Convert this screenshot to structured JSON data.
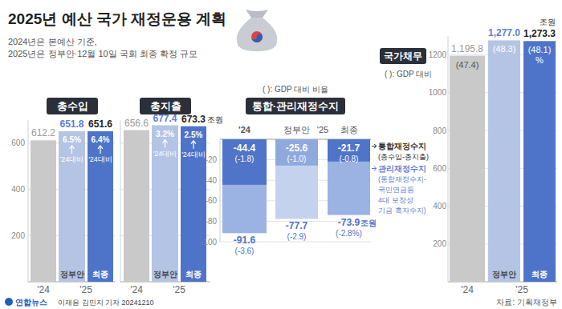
{
  "header": {
    "title": "2025년 예산 국가 재정운용 계획",
    "subtitle": [
      "2024년은 본예산 기준,",
      "2025년은 정부안·12월 10일 국회 최종 확정 규모"
    ]
  },
  "chart_data": [
    {
      "type": "bar",
      "title": "총수입",
      "categories": [
        "'24",
        "정부안",
        "최종"
      ],
      "year_label": "'25",
      "values": [
        612.2,
        651.8,
        651.6
      ],
      "colors": [
        "#c9c9c9",
        "#b4c4e4",
        "#4e74c9"
      ],
      "change": {
        "labels": [
          null,
          "6.5%",
          "6.4%"
        ],
        "base_label": "'24대비"
      },
      "ylim": [
        0,
        700
      ],
      "yticks": [
        200,
        400,
        600
      ],
      "grid": true,
      "data_labels": true
    },
    {
      "type": "bar",
      "title": "총지출",
      "categories": [
        "'24",
        "정부안",
        "최종"
      ],
      "year_label": "'25",
      "values": [
        656.6,
        677.4,
        673.3
      ],
      "colors": [
        "#c9c9c9",
        "#b4c4e4",
        "#4e74c9"
      ],
      "change": {
        "labels": [
          null,
          "3.2%",
          "2.5%"
        ],
        "base_label": "'24대비"
      },
      "unit": "조원",
      "ylim": [
        0,
        700
      ],
      "yticks": [
        200,
        400,
        600
      ],
      "grid": true,
      "data_labels": true,
      "tick_labels": false
    },
    {
      "type": "bar",
      "title": "통합·관리재정수지",
      "note": "( ): GDP 대비 비율",
      "categories": [
        "'24",
        "정부안",
        "최종"
      ],
      "year_label": "'25",
      "series": [
        {
          "name": "통합재정수지",
          "description": [
            "(총수입-총지출)"
          ],
          "values": [
            -44.4,
            -25.6,
            -21.7
          ],
          "colors": [
            "#4f74c8",
            "#8fa9dd",
            "#4f74c8"
          ],
          "gdp_ratio_labels": [
            "(-1.8)",
            "(-1.0)",
            "(-0.8)"
          ]
        },
        {
          "name": "관리재정수지",
          "description": [
            "(통합재정수지-",
            "국민연금등",
            "4대 보장성",
            "기금 흑자수지)"
          ],
          "values": [
            -91.6,
            -77.7,
            -73.9
          ],
          "colors": [
            "#9bb3e3",
            "#c5d2ee",
            "#9bb3e3"
          ],
          "gdp_ratio_labels": [
            "(-3.6)",
            "(-2.9)",
            "(-2.8%)"
          ]
        }
      ],
      "unit": "조원",
      "ylim": [
        -100,
        0
      ],
      "yticks": [
        -100,
        -80,
        -60,
        -40,
        -20
      ],
      "grid": true,
      "data_labels": true,
      "legend": "right"
    },
    {
      "type": "bar",
      "title": "국가채무",
      "note": "( ): GDP 대비",
      "categories": [
        "'24",
        "정부안",
        "최종"
      ],
      "year_label": "'25",
      "values": [
        1195.8,
        1277.0,
        1273.3
      ],
      "value_labels": [
        "1,195.8",
        "1,277.0",
        "1,273.3"
      ],
      "colors": [
        "#c9c9c9",
        "#b4c4e4",
        "#4e74c9"
      ],
      "gdp_ratio_labels": [
        "(47.4)",
        "(48.3)",
        "(48.1)"
      ],
      "gdp_ratio_unit": "%",
      "unit": "조원",
      "ylim": [
        0,
        1300
      ],
      "yticks": [
        200,
        400,
        600,
        800,
        1000,
        1200
      ],
      "grid": true,
      "data_labels": true
    }
  ],
  "footer": {
    "logo": "연합뉴스",
    "credit": "이재윤 김민지 기자  20241210",
    "source": "자료: 기획재정부"
  }
}
